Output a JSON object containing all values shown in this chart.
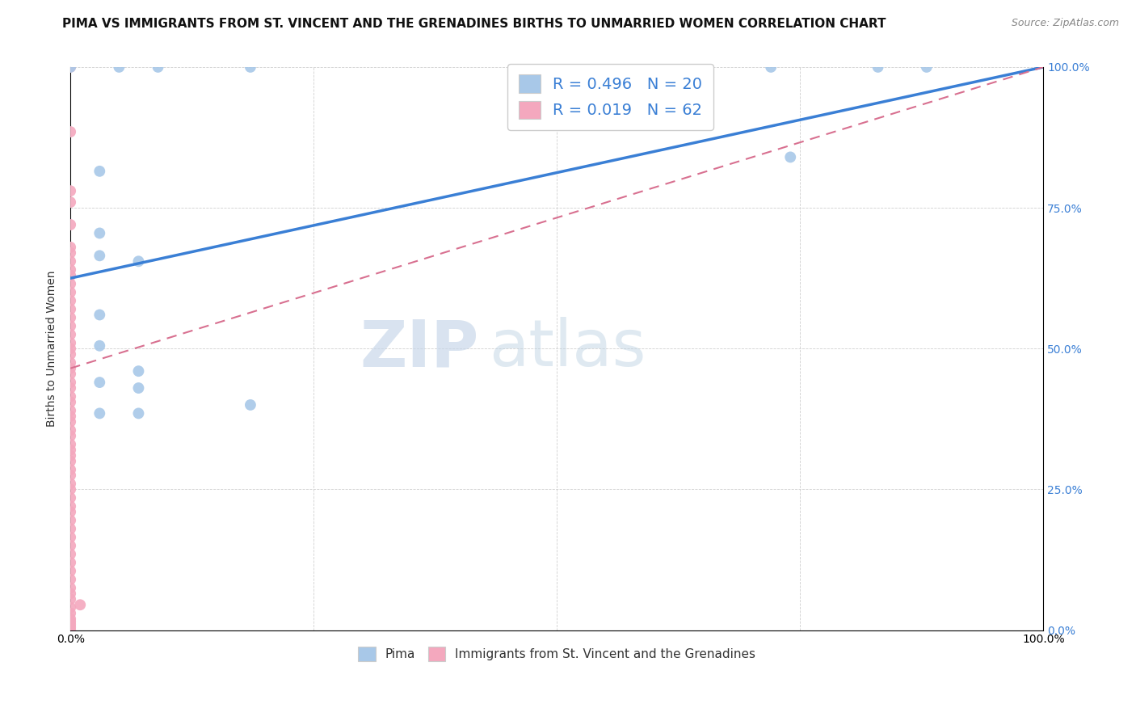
{
  "title": "PIMA VS IMMIGRANTS FROM ST. VINCENT AND THE GRENADINES BIRTHS TO UNMARRIED WOMEN CORRELATION CHART",
  "source": "Source: ZipAtlas.com",
  "ylabel": "Births to Unmarried Women",
  "watermark_zip": "ZIP",
  "watermark_atlas": "atlas",
  "pima_R": 0.496,
  "pima_N": 20,
  "svg_R": 0.019,
  "svg_N": 62,
  "xlim": [
    0.0,
    1.0
  ],
  "ylim": [
    0.0,
    1.0
  ],
  "pima_color": "#a8c8e8",
  "svg_color": "#f4a8be",
  "line_pima_color": "#3a7fd5",
  "line_svg_color": "#d87090",
  "pima_line_x": [
    0.0,
    1.0
  ],
  "pima_line_y": [
    0.625,
    1.0
  ],
  "svg_line_x": [
    0.0,
    1.0
  ],
  "svg_line_y": [
    0.465,
    1.0
  ],
  "pima_points": [
    [
      0.0,
      1.0
    ],
    [
      0.05,
      1.0
    ],
    [
      0.09,
      1.0
    ],
    [
      0.185,
      1.0
    ],
    [
      0.03,
      0.815
    ],
    [
      0.03,
      0.705
    ],
    [
      0.03,
      0.665
    ],
    [
      0.07,
      0.655
    ],
    [
      0.03,
      0.56
    ],
    [
      0.03,
      0.505
    ],
    [
      0.07,
      0.46
    ],
    [
      0.03,
      0.44
    ],
    [
      0.07,
      0.43
    ],
    [
      0.185,
      0.4
    ],
    [
      0.03,
      0.385
    ],
    [
      0.07,
      0.385
    ],
    [
      0.72,
      1.0
    ],
    [
      0.83,
      1.0
    ],
    [
      0.88,
      1.0
    ],
    [
      0.74,
      0.84
    ]
  ],
  "svg_points": [
    [
      0.0,
      1.0
    ],
    [
      0.0,
      0.885
    ],
    [
      0.0,
      0.78
    ],
    [
      0.0,
      0.76
    ],
    [
      0.0,
      0.72
    ],
    [
      0.0,
      0.68
    ],
    [
      0.0,
      0.67
    ],
    [
      0.0,
      0.655
    ],
    [
      0.0,
      0.64
    ],
    [
      0.0,
      0.63
    ],
    [
      0.0,
      0.615
    ],
    [
      0.0,
      0.6
    ],
    [
      0.0,
      0.585
    ],
    [
      0.0,
      0.57
    ],
    [
      0.0,
      0.555
    ],
    [
      0.0,
      0.54
    ],
    [
      0.0,
      0.525
    ],
    [
      0.0,
      0.51
    ],
    [
      0.0,
      0.5
    ],
    [
      0.0,
      0.49
    ],
    [
      0.0,
      0.475
    ],
    [
      0.0,
      0.465
    ],
    [
      0.0,
      0.455
    ],
    [
      0.0,
      0.44
    ],
    [
      0.0,
      0.43
    ],
    [
      0.0,
      0.415
    ],
    [
      0.0,
      0.405
    ],
    [
      0.0,
      0.39
    ],
    [
      0.0,
      0.38
    ],
    [
      0.0,
      0.37
    ],
    [
      0.0,
      0.355
    ],
    [
      0.0,
      0.345
    ],
    [
      0.0,
      0.33
    ],
    [
      0.0,
      0.32
    ],
    [
      0.0,
      0.31
    ],
    [
      0.0,
      0.3
    ],
    [
      0.0,
      0.285
    ],
    [
      0.0,
      0.275
    ],
    [
      0.0,
      0.26
    ],
    [
      0.0,
      0.25
    ],
    [
      0.0,
      0.235
    ],
    [
      0.0,
      0.22
    ],
    [
      0.0,
      0.21
    ],
    [
      0.0,
      0.195
    ],
    [
      0.0,
      0.18
    ],
    [
      0.0,
      0.165
    ],
    [
      0.0,
      0.15
    ],
    [
      0.0,
      0.135
    ],
    [
      0.0,
      0.12
    ],
    [
      0.0,
      0.105
    ],
    [
      0.0,
      0.09
    ],
    [
      0.0,
      0.075
    ],
    [
      0.0,
      0.065
    ],
    [
      0.0,
      0.055
    ],
    [
      0.01,
      0.045
    ],
    [
      0.0,
      0.04
    ],
    [
      0.0,
      0.03
    ],
    [
      0.0,
      0.02
    ],
    [
      0.0,
      0.015
    ],
    [
      0.0,
      0.01
    ],
    [
      0.0,
      0.005
    ],
    [
      0.0,
      0.0
    ]
  ],
  "background_color": "#ffffff",
  "grid_color": "#d0d0d0",
  "title_fontsize": 11,
  "axis_fontsize": 10,
  "legend_fontsize": 14,
  "marker_size": 100
}
